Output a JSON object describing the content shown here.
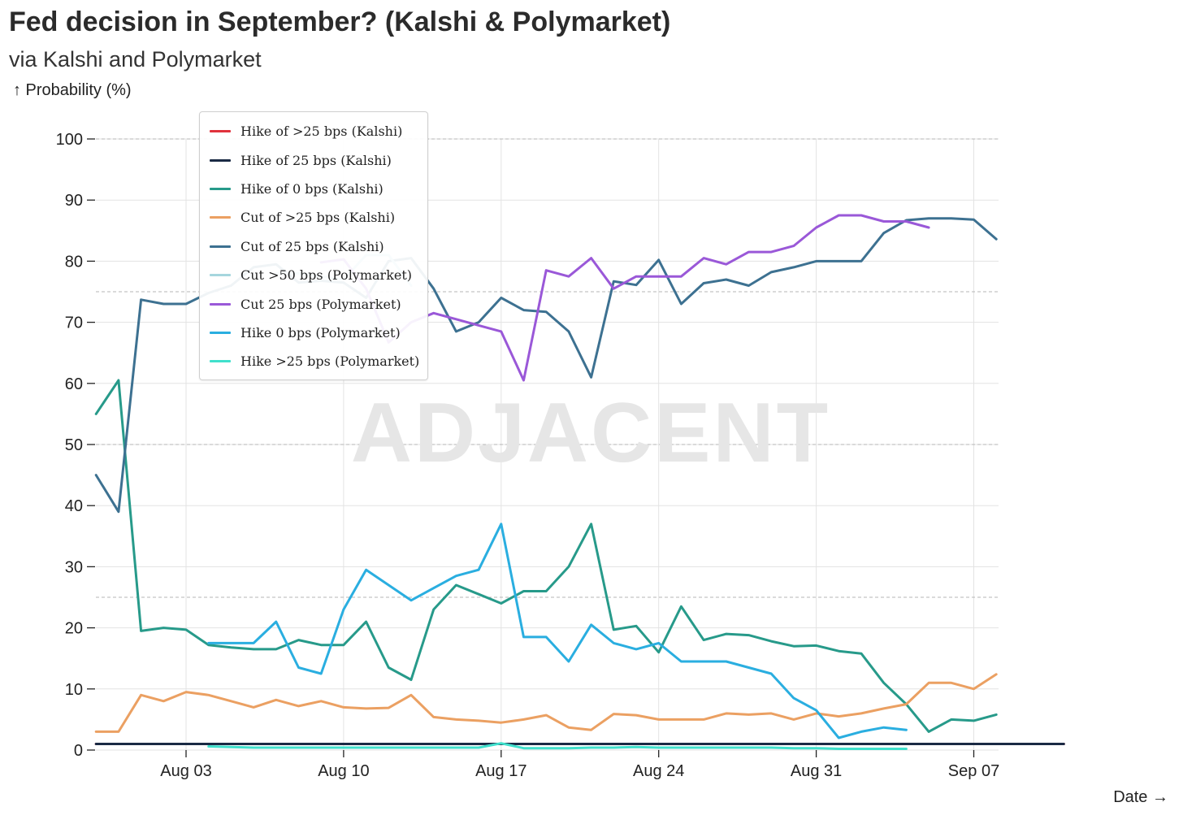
{
  "header": {
    "title": "Fed decision in September? (Kalshi & Polymarket)",
    "subtitle": "via Kalshi and Polymarket"
  },
  "chart_data": {
    "type": "line",
    "title": "Fed decision in September? (Kalshi & Polymarket)",
    "subtitle": "via Kalshi and Polymarket",
    "ylabel": "↑ Probability (%)",
    "xlabel": "Date →",
    "ylim": [
      0,
      100
    ],
    "yticks": [
      0,
      10,
      20,
      30,
      40,
      50,
      60,
      70,
      80,
      90,
      100
    ],
    "xlim": [
      -4,
      39
    ],
    "xticks": [
      {
        "day": 0,
        "label": "Aug 03"
      },
      {
        "day": 7,
        "label": "Aug 10"
      },
      {
        "day": 14,
        "label": "Aug 17"
      },
      {
        "day": 21,
        "label": "Aug 24"
      },
      {
        "day": 28,
        "label": "Aug 31"
      },
      {
        "day": 35,
        "label": "Sep 07"
      }
    ],
    "reference_lines": [
      25,
      50,
      75,
      100
    ],
    "watermark": "ADJACENT",
    "legend_position": "top-left",
    "x_unit": "days since Aug 03",
    "series": [
      {
        "name": "Hike of >25 bps (Kalshi)",
        "color": "#e0323c",
        "start": -4,
        "values": [
          1,
          1,
          1,
          1,
          1,
          1,
          1,
          1,
          1,
          1,
          1,
          1,
          1,
          1,
          1,
          1,
          1,
          1,
          1,
          1,
          1,
          1,
          1,
          1,
          1,
          1,
          1,
          1,
          1,
          1,
          1,
          1,
          1,
          1,
          1,
          1,
          1,
          1,
          1,
          1,
          1,
          1,
          1,
          1
        ]
      },
      {
        "name": "Hike of 25 bps (Kalshi)",
        "color": "#1a2a44",
        "start": -4,
        "values": [
          1,
          1,
          1,
          1,
          1,
          1,
          1,
          1,
          1,
          1,
          1,
          1,
          1,
          1,
          1,
          1,
          1,
          1,
          1,
          1,
          1,
          1,
          1,
          1,
          1,
          1,
          1,
          1,
          1,
          1,
          1,
          1,
          1,
          1,
          1,
          1,
          1,
          1,
          1,
          1,
          1,
          1,
          1,
          1
        ]
      },
      {
        "name": "Hike of 0 bps (Kalshi)",
        "color": "#279a8a",
        "start": -4,
        "values": [
          55,
          60.5,
          19.5,
          20,
          19.7,
          17.2,
          16.8,
          16.5,
          16.5,
          18,
          17.2,
          17.2,
          21,
          13.5,
          11.5,
          23,
          27,
          25.5,
          24,
          26,
          26,
          30,
          37,
          19.7,
          20.3,
          16,
          23.5,
          18,
          19,
          18.8,
          17.8,
          17,
          17.1,
          16.2,
          15.8,
          11,
          7.5,
          3,
          5,
          4.8,
          5.8
        ]
      },
      {
        "name": "Cut of >25 bps (Kalshi)",
        "color": "#eba062",
        "start": -4,
        "values": [
          3,
          3,
          9,
          8,
          9.5,
          9,
          8,
          7,
          8.2,
          7.2,
          8,
          7,
          6.8,
          6.9,
          9,
          5.4,
          5,
          4.8,
          4.5,
          5,
          5.7,
          3.7,
          3.3,
          5.9,
          5.7,
          5,
          5,
          5,
          6,
          5.8,
          6,
          5,
          6,
          5.5,
          6,
          6.8,
          7.5,
          11,
          11,
          10,
          12.4
        ]
      },
      {
        "name": "Cut of 25 bps (Kalshi)",
        "color": "#3d7191",
        "start": -4,
        "values": [
          45,
          39,
          73.7,
          73,
          73,
          74.8,
          76,
          79,
          79.5,
          76.5,
          76.8,
          76.5,
          74,
          80,
          80.5,
          75.5,
          68.5,
          70,
          74,
          72,
          71.7,
          68.5,
          61,
          76.7,
          76.1,
          80.2,
          73,
          76.4,
          77,
          76,
          78.2,
          79,
          80,
          80,
          80,
          84.6,
          86.7,
          87,
          87,
          86.8,
          83.6
        ]
      },
      {
        "name": "Cut >50 bps (Polymarket)",
        "color": "#a6d6de",
        "start": 4,
        "values": [
          78,
          78,
          77.5,
          77,
          81,
          81,
          76
        ]
      },
      {
        "name": "Cut 25 bps (Polymarket)",
        "color": "#9a58d8",
        "start": 6,
        "values": [
          79.8,
          80.3,
          75.5,
          66.7,
          70,
          71.5,
          70.5,
          69.5,
          68.5,
          60.5,
          78.5,
          77.5,
          80.5,
          75.5,
          77.5,
          77.5,
          77.5,
          80.5,
          79.5,
          81.5,
          81.5,
          82.5,
          85.5,
          87.5,
          87.5,
          86.5,
          86.5,
          85.5
        ]
      },
      {
        "name": "Hike 0 bps (Polymarket)",
        "color": "#2aaee0",
        "start": 1,
        "values": [
          17.5,
          17.5,
          17.5,
          21,
          13.5,
          12.5,
          23,
          29.5,
          27,
          24.5,
          26.5,
          28.5,
          29.5,
          37,
          18.5,
          18.5,
          14.5,
          20.5,
          17.5,
          16.5,
          17.5,
          14.5,
          14.5,
          14.5,
          13.5,
          12.5,
          8.5,
          6.5,
          2,
          3,
          3.7,
          3.3
        ]
      },
      {
        "name": "Hike >25 bps (Polymarket)",
        "color": "#40e0cc",
        "start": 1,
        "values": [
          0.6,
          0.5,
          0.4,
          0.4,
          0.4,
          0.4,
          0.4,
          0.4,
          0.4,
          0.4,
          0.4,
          0.4,
          0.4,
          1.1,
          0.3,
          0.3,
          0.3,
          0.4,
          0.4,
          0.5,
          0.4,
          0.4,
          0.4,
          0.4,
          0.4,
          0.4,
          0.3,
          0.3,
          0.2,
          0.2,
          0.2,
          0.2
        ]
      }
    ]
  }
}
